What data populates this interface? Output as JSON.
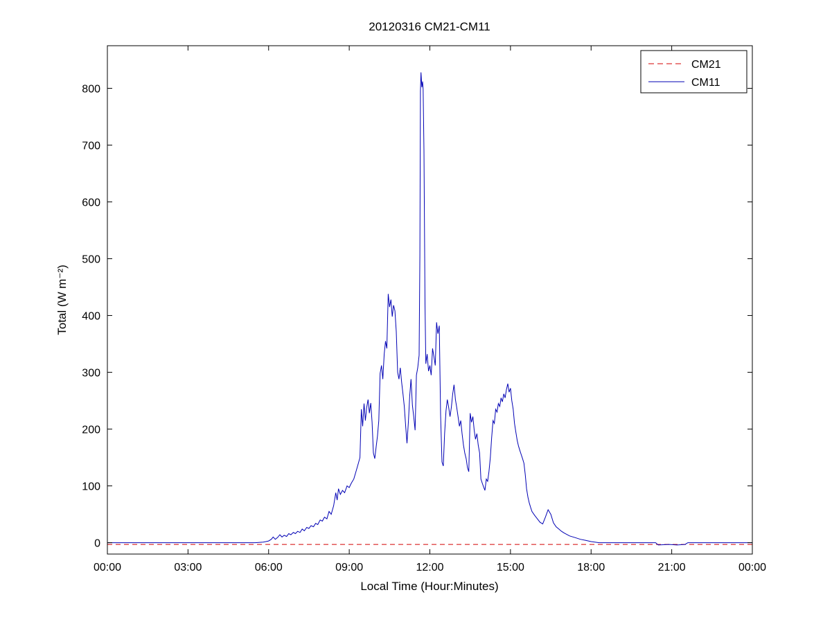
{
  "figure": {
    "background": "#ffffff"
  },
  "chart_data": {
    "type": "line",
    "title": "20120316 CM21-CM11",
    "xlabel": "Local Time (Hour:Minutes)",
    "ylabel": "Total (W m⁻²)",
    "xlim": [
      0,
      24
    ],
    "ylim": [
      -20,
      875
    ],
    "x_ticks": [
      0,
      3,
      6,
      9,
      12,
      15,
      18,
      21,
      24
    ],
    "x_tick_labels": [
      "00:00",
      "03:00",
      "06:00",
      "09:00",
      "12:00",
      "15:00",
      "18:00",
      "21:00",
      "00:00"
    ],
    "y_ticks": [
      0,
      100,
      200,
      300,
      400,
      500,
      600,
      700,
      800
    ],
    "y_tick_labels": [
      "0",
      "100",
      "200",
      "300",
      "400",
      "500",
      "600",
      "700",
      "800"
    ],
    "grid": false,
    "legend_position": "top-right",
    "axis_color": "#000000",
    "series": [
      {
        "name": "CM21",
        "color": "#d40000",
        "dash": "dashed",
        "points": [
          [
            0,
            -3
          ],
          [
            24,
            -3
          ]
        ]
      },
      {
        "name": "CM11",
        "color": "#0000b4",
        "dash": "solid",
        "points": [
          [
            0,
            0
          ],
          [
            0.5,
            0
          ],
          [
            1,
            0
          ],
          [
            1.5,
            0
          ],
          [
            2,
            0
          ],
          [
            2.5,
            0
          ],
          [
            3,
            0
          ],
          [
            3.5,
            0
          ],
          [
            4,
            0
          ],
          [
            4.5,
            0
          ],
          [
            5,
            0
          ],
          [
            5.5,
            0
          ],
          [
            5.8,
            1
          ],
          [
            6,
            3
          ],
          [
            6.1,
            6
          ],
          [
            6.17,
            10
          ],
          [
            6.25,
            6
          ],
          [
            6.33,
            9
          ],
          [
            6.42,
            14
          ],
          [
            6.5,
            10
          ],
          [
            6.58,
            13
          ],
          [
            6.67,
            11
          ],
          [
            6.75,
            16
          ],
          [
            6.83,
            14
          ],
          [
            6.92,
            18
          ],
          [
            7,
            16
          ],
          [
            7.08,
            20
          ],
          [
            7.17,
            18
          ],
          [
            7.25,
            24
          ],
          [
            7.33,
            21
          ],
          [
            7.42,
            27
          ],
          [
            7.5,
            25
          ],
          [
            7.58,
            30
          ],
          [
            7.67,
            28
          ],
          [
            7.75,
            34
          ],
          [
            7.83,
            32
          ],
          [
            7.92,
            40
          ],
          [
            8,
            38
          ],
          [
            8.08,
            45
          ],
          [
            8.17,
            42
          ],
          [
            8.25,
            55
          ],
          [
            8.33,
            50
          ],
          [
            8.42,
            65
          ],
          [
            8.5,
            88
          ],
          [
            8.55,
            75
          ],
          [
            8.6,
            95
          ],
          [
            8.67,
            85
          ],
          [
            8.75,
            92
          ],
          [
            8.83,
            88
          ],
          [
            8.92,
            100
          ],
          [
            9,
            97
          ],
          [
            9.08,
            105
          ],
          [
            9.17,
            112
          ],
          [
            9.25,
            125
          ],
          [
            9.33,
            138
          ],
          [
            9.4,
            150
          ],
          [
            9.45,
            235
          ],
          [
            9.5,
            205
          ],
          [
            9.55,
            245
          ],
          [
            9.6,
            215
          ],
          [
            9.65,
            238
          ],
          [
            9.7,
            252
          ],
          [
            9.75,
            228
          ],
          [
            9.8,
            246
          ],
          [
            9.85,
            212
          ],
          [
            9.9,
            158
          ],
          [
            9.95,
            148
          ],
          [
            10,
            168
          ],
          [
            10.05,
            188
          ],
          [
            10.1,
            215
          ],
          [
            10.15,
            298
          ],
          [
            10.2,
            312
          ],
          [
            10.25,
            288
          ],
          [
            10.3,
            332
          ],
          [
            10.35,
            355
          ],
          [
            10.4,
            342
          ],
          [
            10.45,
            438
          ],
          [
            10.5,
            415
          ],
          [
            10.55,
            428
          ],
          [
            10.6,
            398
          ],
          [
            10.65,
            418
          ],
          [
            10.7,
            408
          ],
          [
            10.75,
            372
          ],
          [
            10.8,
            300
          ],
          [
            10.85,
            288
          ],
          [
            10.9,
            308
          ],
          [
            10.95,
            282
          ],
          [
            11,
            262
          ],
          [
            11.05,
            240
          ],
          [
            11.1,
            205
          ],
          [
            11.15,
            175
          ],
          [
            11.2,
            212
          ],
          [
            11.25,
            258
          ],
          [
            11.3,
            288
          ],
          [
            11.35,
            242
          ],
          [
            11.4,
            222
          ],
          [
            11.45,
            198
          ],
          [
            11.5,
            295
          ],
          [
            11.55,
            308
          ],
          [
            11.6,
            330
          ],
          [
            11.63,
            505
          ],
          [
            11.65,
            795
          ],
          [
            11.67,
            828
          ],
          [
            11.7,
            802
          ],
          [
            11.73,
            812
          ],
          [
            11.75,
            798
          ],
          [
            11.78,
            690
          ],
          [
            11.82,
            420
          ],
          [
            11.85,
            315
          ],
          [
            11.9,
            332
          ],
          [
            11.95,
            302
          ],
          [
            12,
            312
          ],
          [
            12.05,
            295
          ],
          [
            12.1,
            342
          ],
          [
            12.15,
            328
          ],
          [
            12.2,
            312
          ],
          [
            12.25,
            388
          ],
          [
            12.3,
            368
          ],
          [
            12.35,
            382
          ],
          [
            12.4,
            225
          ],
          [
            12.45,
            142
          ],
          [
            12.5,
            135
          ],
          [
            12.55,
            192
          ],
          [
            12.6,
            232
          ],
          [
            12.65,
            252
          ],
          [
            12.7,
            238
          ],
          [
            12.75,
            222
          ],
          [
            12.8,
            238
          ],
          [
            12.85,
            262
          ],
          [
            12.9,
            278
          ],
          [
            12.95,
            252
          ],
          [
            13,
            238
          ],
          [
            13.05,
            222
          ],
          [
            13.1,
            205
          ],
          [
            13.15,
            215
          ],
          [
            13.2,
            192
          ],
          [
            13.25,
            172
          ],
          [
            13.3,
            158
          ],
          [
            13.35,
            148
          ],
          [
            13.4,
            132
          ],
          [
            13.45,
            125
          ],
          [
            13.5,
            228
          ],
          [
            13.55,
            212
          ],
          [
            13.6,
            222
          ],
          [
            13.65,
            198
          ],
          [
            13.7,
            182
          ],
          [
            13.75,
            192
          ],
          [
            13.8,
            172
          ],
          [
            13.85,
            158
          ],
          [
            13.9,
            112
          ],
          [
            13.95,
            105
          ],
          [
            14,
            98
          ],
          [
            14.05,
            92
          ],
          [
            14.1,
            112
          ],
          [
            14.15,
            108
          ],
          [
            14.2,
            125
          ],
          [
            14.25,
            150
          ],
          [
            14.3,
            185
          ],
          [
            14.35,
            215
          ],
          [
            14.4,
            210
          ],
          [
            14.45,
            235
          ],
          [
            14.5,
            230
          ],
          [
            14.55,
            245
          ],
          [
            14.6,
            240
          ],
          [
            14.65,
            255
          ],
          [
            14.7,
            248
          ],
          [
            14.75,
            262
          ],
          [
            14.8,
            255
          ],
          [
            14.85,
            270
          ],
          [
            14.9,
            280
          ],
          [
            14.95,
            265
          ],
          [
            15,
            272
          ],
          [
            15.05,
            250
          ],
          [
            15.1,
            235
          ],
          [
            15.15,
            210
          ],
          [
            15.2,
            195
          ],
          [
            15.25,
            180
          ],
          [
            15.3,
            170
          ],
          [
            15.35,
            162
          ],
          [
            15.4,
            155
          ],
          [
            15.45,
            148
          ],
          [
            15.5,
            140
          ],
          [
            15.55,
            120
          ],
          [
            15.6,
            95
          ],
          [
            15.65,
            80
          ],
          [
            15.7,
            70
          ],
          [
            15.75,
            62
          ],
          [
            15.8,
            55
          ],
          [
            15.9,
            48
          ],
          [
            16,
            42
          ],
          [
            16.1,
            36
          ],
          [
            16.2,
            33
          ],
          [
            16.3,
            45
          ],
          [
            16.4,
            58
          ],
          [
            16.5,
            50
          ],
          [
            16.6,
            35
          ],
          [
            16.7,
            28
          ],
          [
            16.8,
            24
          ],
          [
            16.9,
            20
          ],
          [
            17,
            17
          ],
          [
            17.2,
            12
          ],
          [
            17.4,
            9
          ],
          [
            17.6,
            6
          ],
          [
            17.8,
            4
          ],
          [
            18,
            2
          ],
          [
            18.3,
            0
          ],
          [
            19,
            0
          ],
          [
            20,
            0
          ],
          [
            20.4,
            0
          ],
          [
            20.5,
            -4
          ],
          [
            20.9,
            -3
          ],
          [
            21.2,
            -4
          ],
          [
            21.5,
            -3
          ],
          [
            21.6,
            0
          ],
          [
            22,
            0
          ],
          [
            23,
            0
          ],
          [
            24,
            0
          ]
        ]
      }
    ]
  }
}
